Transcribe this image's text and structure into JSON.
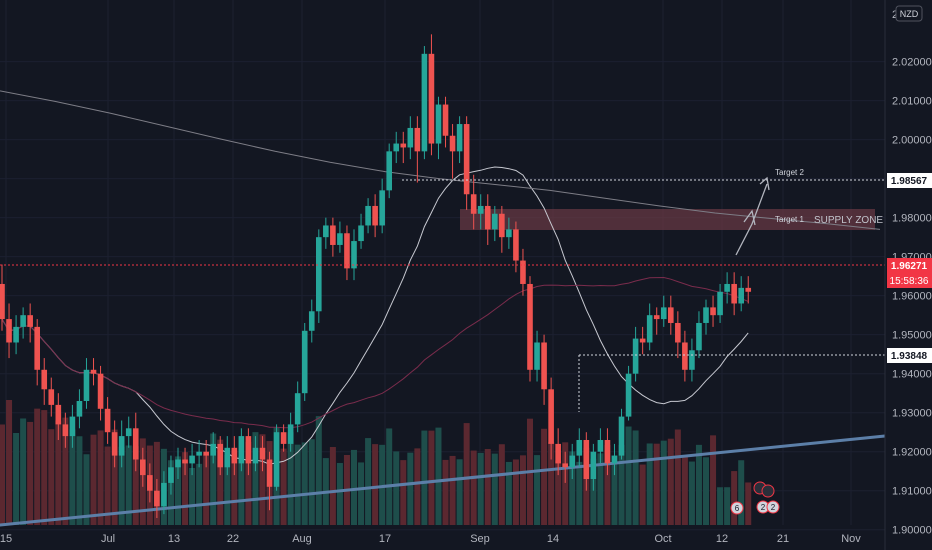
{
  "currency": "NZD",
  "colors": {
    "background": "#131722",
    "up": "#26a69a",
    "down": "#ef5350",
    "vol_up": "#1e4e4b",
    "vol_down": "#5b2830",
    "ma_white": "#c7c9d1",
    "ma_gray": "#7d7d86",
    "ma_maroon": "#7a2c4c",
    "trendline": "#5c7fa8",
    "zone": "#6b3b45",
    "price_label": "#f23645"
  },
  "annotations": {
    "target1": "Target 1",
    "target2": "Target 2",
    "supply_zone": "SUPPLY ZONE"
  },
  "price_labels": {
    "target2": "1.98567",
    "current_price": "1.96271",
    "countdown": "15:58:36",
    "support": "1.93848"
  },
  "event_badges": [
    "6",
    "2",
    "2"
  ],
  "chart_data": {
    "type": "candlestick",
    "symbol_currency": "NZD",
    "y_ticks": [
      "1.90000",
      "1.91000",
      "1.92000",
      "1.93000",
      "1.94000",
      "1.95000",
      "1.96000",
      "1.97000",
      "1.98000",
      "1.99000",
      "2.00000",
      "2.01000",
      "2.02000"
    ],
    "y_top_partial_label": "2",
    "x_ticks": [
      "15",
      "Jul",
      "13",
      "22",
      "Aug",
      "17",
      "Sep",
      "14",
      "Oct",
      "12",
      "21",
      "Nov"
    ],
    "ylim": [
      1.8948,
      2.0358
    ],
    "candles": [
      [
        1.963,
        1.954,
        1.968,
        1.951
      ],
      [
        1.954,
        1.948,
        1.958,
        1.944
      ],
      [
        1.948,
        1.952,
        1.955,
        1.945
      ],
      [
        1.952,
        1.955,
        1.957,
        1.949
      ],
      [
        1.955,
        1.952,
        1.958,
        1.948
      ],
      [
        1.952,
        1.941,
        1.954,
        1.937
      ],
      [
        1.941,
        1.936,
        1.944,
        1.932
      ],
      [
        1.936,
        1.932,
        1.939,
        1.929
      ],
      [
        1.932,
        1.927,
        1.935,
        1.923
      ],
      [
        1.927,
        1.924,
        1.93,
        1.921
      ],
      [
        1.924,
        1.929,
        1.932,
        1.921
      ],
      [
        1.929,
        1.933,
        1.936,
        1.926
      ],
      [
        1.933,
        1.941,
        1.944,
        1.931
      ],
      [
        1.941,
        1.94,
        1.944,
        1.937
      ],
      [
        1.94,
        1.931,
        1.942,
        1.928
      ],
      [
        1.931,
        1.925,
        1.934,
        1.922
      ],
      [
        1.925,
        1.919,
        1.928,
        1.916
      ],
      [
        1.919,
        1.924,
        1.928,
        1.916
      ],
      [
        1.924,
        1.926,
        1.929,
        1.921
      ],
      [
        1.926,
        1.918,
        1.93,
        1.915
      ],
      [
        1.918,
        1.914,
        1.921,
        1.911
      ],
      [
        1.914,
        1.91,
        1.917,
        1.907
      ],
      [
        1.91,
        1.906,
        1.913,
        1.903
      ],
      [
        1.906,
        1.912,
        1.915,
        1.904
      ],
      [
        1.912,
        1.916,
        1.919,
        1.909
      ],
      [
        1.916,
        1.918,
        1.921,
        1.913
      ],
      [
        1.918,
        1.917,
        1.921,
        1.914
      ],
      [
        1.917,
        1.919,
        1.922,
        1.914
      ],
      [
        1.919,
        1.92,
        1.923,
        1.916
      ],
      [
        1.92,
        1.919,
        1.923,
        1.916
      ],
      [
        1.919,
        1.922,
        1.925,
        1.917
      ],
      [
        1.922,
        1.916,
        1.924,
        1.914
      ],
      [
        1.916,
        1.921,
        1.924,
        1.914
      ],
      [
        1.921,
        1.917,
        1.924,
        1.914
      ],
      [
        1.917,
        1.924,
        1.926,
        1.915
      ],
      [
        1.924,
        1.917,
        1.926,
        1.914
      ],
      [
        1.917,
        1.921,
        1.924,
        1.915
      ],
      [
        1.921,
        1.918,
        1.924,
        1.915
      ],
      [
        1.918,
        1.911,
        1.92,
        1.905
      ],
      [
        1.911,
        1.925,
        1.927,
        1.91
      ],
      [
        1.925,
        1.922,
        1.927,
        1.92
      ],
      [
        1.922,
        1.927,
        1.93,
        1.92
      ],
      [
        1.927,
        1.935,
        1.938,
        1.925
      ],
      [
        1.935,
        1.951,
        1.953,
        1.933
      ],
      [
        1.951,
        1.956,
        1.959,
        1.948
      ],
      [
        1.956,
        1.975,
        1.977,
        1.953
      ],
      [
        1.975,
        1.978,
        1.98,
        1.972
      ],
      [
        1.978,
        1.973,
        1.98,
        1.97
      ],
      [
        1.973,
        1.976,
        1.979,
        1.971
      ],
      [
        1.976,
        1.967,
        1.978,
        1.964
      ],
      [
        1.967,
        1.974,
        1.977,
        1.964
      ],
      [
        1.974,
        1.978,
        1.981,
        1.972
      ],
      [
        1.978,
        1.983,
        1.985,
        1.976
      ],
      [
        1.983,
        1.978,
        1.986,
        1.975
      ],
      [
        1.978,
        1.987,
        1.99,
        1.976
      ],
      [
        1.987,
        1.997,
        1.999,
        1.985
      ],
      [
        1.997,
        1.999,
        2.002,
        1.994
      ],
      [
        1.999,
        1.998,
        2.002,
        1.994
      ],
      [
        1.998,
        2.003,
        2.006,
        1.995
      ],
      [
        2.003,
        1.997,
        2.006,
        1.989
      ],
      [
        1.997,
        2.022,
        2.024,
        1.995
      ],
      [
        2.022,
        1.999,
        2.027,
        1.996
      ],
      [
        1.999,
        2.009,
        2.011,
        1.995
      ],
      [
        2.009,
        2.001,
        2.011,
        1.998
      ],
      [
        2.001,
        1.997,
        2.004,
        1.99
      ],
      [
        1.997,
        2.004,
        2.006,
        1.994
      ],
      [
        2.004,
        1.986,
        2.006,
        1.982
      ],
      [
        1.986,
        1.981,
        1.991,
        1.977
      ],
      [
        1.981,
        1.983,
        1.986,
        1.977
      ],
      [
        1.983,
        1.977,
        1.986,
        1.973
      ],
      [
        1.977,
        1.981,
        1.983,
        1.974
      ],
      [
        1.981,
        1.975,
        1.983,
        1.971
      ],
      [
        1.975,
        1.977,
        1.98,
        1.972
      ],
      [
        1.977,
        1.969,
        1.979,
        1.966
      ],
      [
        1.969,
        1.963,
        1.972,
        1.96
      ],
      [
        1.963,
        1.941,
        1.965,
        1.938
      ],
      [
        1.941,
        1.948,
        1.951,
        1.938
      ],
      [
        1.948,
        1.936,
        1.95,
        1.932
      ],
      [
        1.936,
        1.922,
        1.939,
        1.918
      ],
      [
        1.922,
        1.917,
        1.926,
        1.914
      ],
      [
        1.917,
        1.916,
        1.92,
        1.912
      ],
      [
        1.916,
        1.919,
        1.922,
        1.913
      ],
      [
        1.919,
        1.923,
        1.926,
        1.916
      ],
      [
        1.923,
        1.913,
        1.925,
        1.91
      ],
      [
        1.913,
        1.92,
        1.922,
        1.91
      ],
      [
        1.92,
        1.923,
        1.926,
        1.917
      ],
      [
        1.923,
        1.917,
        1.926,
        1.914
      ],
      [
        1.917,
        1.919,
        1.922,
        1.914
      ],
      [
        1.919,
        1.929,
        1.931,
        1.918
      ],
      [
        1.929,
        1.94,
        1.942,
        1.928
      ],
      [
        1.94,
        1.949,
        1.952,
        1.938
      ],
      [
        1.949,
        1.948,
        1.952,
        1.945
      ],
      [
        1.948,
        1.955,
        1.958,
        1.946
      ],
      [
        1.955,
        1.954,
        1.957,
        1.95
      ],
      [
        1.954,
        1.957,
        1.96,
        1.952
      ],
      [
        1.957,
        1.953,
        1.96,
        1.95
      ],
      [
        1.953,
        1.948,
        1.956,
        1.944
      ],
      [
        1.948,
        1.941,
        1.951,
        1.938
      ],
      [
        1.941,
        1.946,
        1.949,
        1.938
      ],
      [
        1.946,
        1.953,
        1.956,
        1.944
      ],
      [
        1.953,
        1.957,
        1.959,
        1.95
      ],
      [
        1.957,
        1.955,
        1.96,
        1.952
      ],
      [
        1.955,
        1.961,
        1.963,
        1.953
      ],
      [
        1.961,
        1.963,
        1.966,
        1.958
      ],
      [
        1.963,
        1.958,
        1.966,
        1.955
      ],
      [
        1.958,
        1.962,
        1.965,
        1.956
      ],
      [
        1.962,
        1.961,
        1.965,
        1.958
      ]
    ],
    "ylabel": "",
    "xlabel": "",
    "title": ""
  }
}
